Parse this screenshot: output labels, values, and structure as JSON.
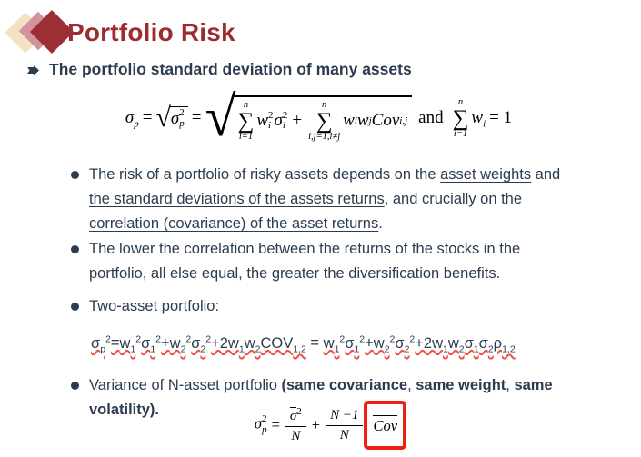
{
  "slide": {
    "title": "Portfolio Risk",
    "heading": "The portfolio standard deviation of many assets"
  },
  "colors": {
    "title_maroon": "#9c2c2e",
    "body_navy": "#2b3c4f",
    "squiggle_red": "#ef5044",
    "box_red": "#ee2015",
    "diamond_beige": "#f2e2c3",
    "diamond_pink": "#d4939b",
    "diamond_maroon": "#9c2f35"
  },
  "formula_top": {
    "radical": "√",
    "sigma": "σ",
    "p": "p",
    "two": "2",
    "eq": "=",
    "n": "n",
    "sum": "∑",
    "i_eq_1": "i=1",
    "w": "w",
    "i": "i",
    "plus": "+",
    "ij_cond": "i,j=1,i≠j",
    "j": "j",
    "cov": "Cov",
    "ij": "i,j",
    "and": "and",
    "eq_one": "= 1"
  },
  "bullets": {
    "b1": [
      {
        "t": "The risk of a portfolio of risky assets depends on the "
      },
      {
        "t": "asset weights",
        "u": 1
      },
      {
        "t": " and"
      },
      {
        "br": 1
      },
      {
        "t": "the standard deviations of the assets returns",
        "u": 1
      },
      {
        "t": ", and crucially on the"
      },
      {
        "br": 1
      },
      {
        "t": "correlation (covariance) of the asset returns",
        "u": 1
      },
      {
        "t": "."
      }
    ],
    "b2": [
      {
        "t": "The lower the correlation between the returns of the stocks in the"
      },
      {
        "br": 1
      },
      {
        "t": "portfolio, all else equal, the greater the diversification benefits."
      }
    ],
    "b3": [
      {
        "t": "Two-asset portfolio:"
      }
    ],
    "b4": [
      {
        "t": "Variance of N-asset portfolio "
      },
      {
        "t": "(same covariance",
        "b": 1
      },
      {
        "t": ", "
      },
      {
        "t": "same weight",
        "b": 1
      },
      {
        "t": ", "
      },
      {
        "t": "same ",
        "b": 1
      },
      {
        "br": 1
      },
      {
        "t": "volatility).",
        "b": 1
      }
    ]
  },
  "two_asset_formula": [
    {
      "t": "σ",
      "sub": "p",
      "sup": "2",
      "sq": 1
    },
    {
      "t": "=",
      "sq": 1
    },
    {
      "t": "w",
      "sub": "1",
      "sup": "2",
      "sq": 1
    },
    {
      "t": "σ",
      "sub": "1",
      "sup": "2",
      "sq": 1
    },
    {
      "t": "+",
      "sq": 1
    },
    {
      "t": "w",
      "sub": "2",
      "sup": "2",
      "sq": 1
    },
    {
      "t": "σ",
      "sub": "2",
      "sup": "2",
      "sq": 1
    },
    {
      "t": "+2w",
      "sub": "1",
      "sq": 1
    },
    {
      "t": "w",
      "sub": "2",
      "sq": 1
    },
    {
      "t": "COV",
      "sub": "1,2",
      "sq": 1
    },
    {
      "t": " = "
    },
    {
      "t": "w",
      "sub": "1",
      "sup": "2",
      "sq": 1
    },
    {
      "t": "σ",
      "sub": "1",
      "sup": "2",
      "sq": 1
    },
    {
      "t": "+",
      "sq": 1
    },
    {
      "t": "w",
      "sub": "2",
      "sup": "2",
      "sq": 1
    },
    {
      "t": "σ",
      "sub": "2",
      "sup": "2",
      "sq": 1
    },
    {
      "t": "+2w",
      "sub": "1",
      "sq": 1
    },
    {
      "t": "w",
      "sub": "2",
      "sq": 1
    },
    {
      "t": "σ",
      "sub": "1",
      "sq": 1
    },
    {
      "t": "σ",
      "sub": "2",
      "sq": 1
    },
    {
      "t": "ρ",
      "sub": "1,2",
      "sq": 1
    }
  ],
  "formula_bottom": {
    "sigma": "σ",
    "p": "p",
    "two": "2",
    "eq": "=",
    "N": "N",
    "plus": "+",
    "n_minus_one": "N −1",
    "cov": "Cov"
  }
}
